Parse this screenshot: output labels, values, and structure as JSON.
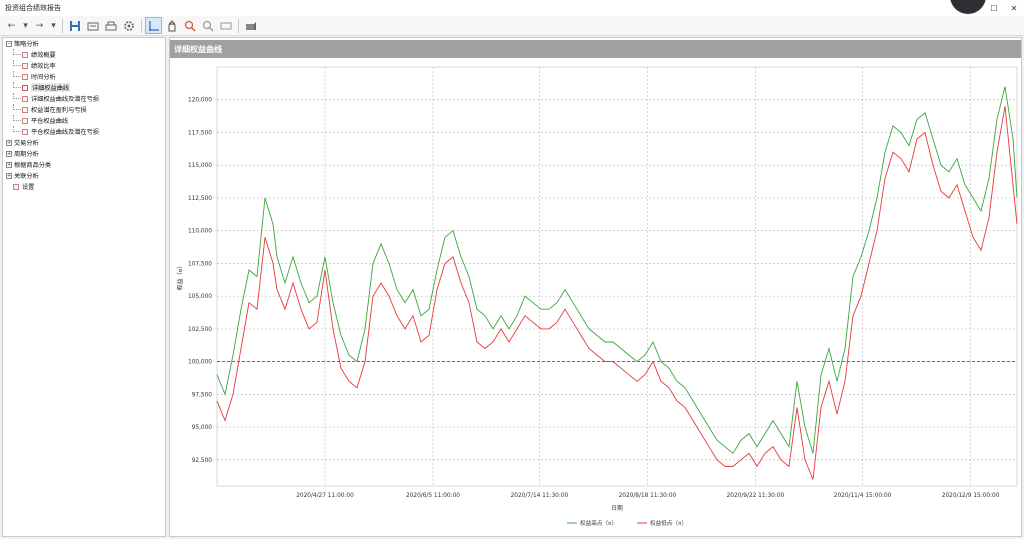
{
  "app": {
    "title": "投资组合绩效报告"
  },
  "window_controls": {
    "minimize": "—",
    "maximize": "☐",
    "close": "✕"
  },
  "toolbar": {
    "back": "←",
    "back_menu": "▾",
    "forward": "→",
    "forward_menu": "▾",
    "icons": [
      "save-icon",
      "open-icon",
      "print-icon",
      "gear-icon",
      "crosshair-icon",
      "hand-icon",
      "zoom-in-icon",
      "zoom-out-icon",
      "zoom-fit-icon",
      "export-icon"
    ]
  },
  "tree": {
    "groups": [
      {
        "label": "策略分析",
        "toggle": "−",
        "items": [
          {
            "label": "绩效概要"
          },
          {
            "label": "绩效比率"
          },
          {
            "label": "时间分析"
          },
          {
            "label": "详细权益曲线",
            "selected": true
          },
          {
            "label": "详细权益曲线及潜在亏损"
          },
          {
            "label": "权益潜在盈利与亏损"
          },
          {
            "label": "平仓权益曲线"
          },
          {
            "label": "平仓权益曲线及潜在亏损"
          }
        ]
      },
      {
        "label": "交易分析",
        "toggle": "+",
        "items": []
      },
      {
        "label": "周期分析",
        "toggle": "+",
        "items": []
      },
      {
        "label": "根据商品分类",
        "toggle": "+",
        "items": []
      },
      {
        "label": "关联分析",
        "toggle": "+",
        "items": []
      }
    ],
    "settings": {
      "label": "设置"
    }
  },
  "panel": {
    "title": "详细权益曲线"
  },
  "chart_data": {
    "type": "line",
    "xlabel": "日期",
    "ylabel": "权益（¤）",
    "ylim": [
      90500,
      122500
    ],
    "y_ticks": [
      "92,500",
      "95,000",
      "97,500",
      "100,000",
      "102,500",
      "105,000",
      "107,500",
      "110,000",
      "112,500",
      "115,000",
      "117,500",
      "120,000"
    ],
    "y_tick_values": [
      92500,
      95000,
      97500,
      100000,
      102500,
      105000,
      107500,
      110000,
      112500,
      115000,
      117500,
      120000
    ],
    "x_ticks": [
      "2020/4/27 11:00:00",
      "2020/6/5 11:00:00",
      "2020/7/14 11:30:00",
      "2020/8/18 11:30:00",
      "2020/9/22 11:30:00",
      "2020/11/4 15:00:00",
      "2020/12/9 15:00:00"
    ],
    "x_tick_positions": [
      0.135,
      0.27,
      0.403,
      0.538,
      0.673,
      0.807,
      0.942
    ],
    "baseline": 100000,
    "colors": {
      "high": "#3aa63a",
      "low": "#e8373a"
    },
    "series": [
      {
        "name": "权益高点（¤）",
        "color": "#3aa63a",
        "x": [
          0.0,
          0.01,
          0.02,
          0.03,
          0.04,
          0.05,
          0.06,
          0.07,
          0.075,
          0.085,
          0.095,
          0.105,
          0.115,
          0.125,
          0.135,
          0.145,
          0.155,
          0.165,
          0.175,
          0.185,
          0.195,
          0.205,
          0.215,
          0.225,
          0.235,
          0.245,
          0.255,
          0.265,
          0.275,
          0.285,
          0.295,
          0.305,
          0.315,
          0.325,
          0.335,
          0.345,
          0.355,
          0.365,
          0.375,
          0.385,
          0.395,
          0.405,
          0.415,
          0.425,
          0.435,
          0.445,
          0.455,
          0.465,
          0.475,
          0.485,
          0.495,
          0.505,
          0.515,
          0.525,
          0.535,
          0.545,
          0.555,
          0.565,
          0.575,
          0.585,
          0.595,
          0.605,
          0.615,
          0.625,
          0.635,
          0.645,
          0.655,
          0.665,
          0.675,
          0.685,
          0.695,
          0.705,
          0.715,
          0.725,
          0.735,
          0.745,
          0.755,
          0.765,
          0.775,
          0.785,
          0.795,
          0.805,
          0.815,
          0.825,
          0.835,
          0.845,
          0.855,
          0.865,
          0.875,
          0.885,
          0.895,
          0.905,
          0.915,
          0.925,
          0.935,
          0.945,
          0.955,
          0.965,
          0.975,
          0.985,
          0.995,
          1.0
        ],
        "values": [
          99000,
          97500,
          100500,
          104000,
          107000,
          106500,
          112500,
          110500,
          108000,
          106000,
          108000,
          106000,
          104500,
          105000,
          108000,
          104500,
          102000,
          100500,
          100000,
          102500,
          107500,
          109000,
          107500,
          105500,
          104500,
          105500,
          103500,
          104000,
          107000,
          109500,
          110000,
          108000,
          106500,
          104000,
          103500,
          102500,
          103500,
          102500,
          103500,
          105000,
          104500,
          104000,
          104000,
          104500,
          105500,
          104500,
          103500,
          102500,
          102000,
          101500,
          101500,
          101000,
          100500,
          100000,
          100500,
          101500,
          100000,
          99500,
          98500,
          98000,
          97000,
          96000,
          95000,
          94000,
          93500,
          93000,
          94000,
          94500,
          93500,
          94500,
          95500,
          94500,
          93500,
          98500,
          95000,
          93000,
          99000,
          101000,
          98500,
          101000,
          106500,
          108000,
          110000,
          112500,
          116000,
          118000,
          117500,
          116500,
          118500,
          119000,
          117000,
          115000,
          114500,
          115500,
          113500,
          112500,
          111500,
          114000,
          118500,
          121000,
          117000,
          112500
        ]
      },
      {
        "name": "权益低点（¤）",
        "color": "#e8373a",
        "x": [
          0.0,
          0.01,
          0.02,
          0.03,
          0.04,
          0.05,
          0.06,
          0.07,
          0.075,
          0.085,
          0.095,
          0.105,
          0.115,
          0.125,
          0.135,
          0.145,
          0.155,
          0.165,
          0.175,
          0.185,
          0.195,
          0.205,
          0.215,
          0.225,
          0.235,
          0.245,
          0.255,
          0.265,
          0.275,
          0.285,
          0.295,
          0.305,
          0.315,
          0.325,
          0.335,
          0.345,
          0.355,
          0.365,
          0.375,
          0.385,
          0.395,
          0.405,
          0.415,
          0.425,
          0.435,
          0.445,
          0.455,
          0.465,
          0.475,
          0.485,
          0.495,
          0.505,
          0.515,
          0.525,
          0.535,
          0.545,
          0.555,
          0.565,
          0.575,
          0.585,
          0.595,
          0.605,
          0.615,
          0.625,
          0.635,
          0.645,
          0.655,
          0.665,
          0.675,
          0.685,
          0.695,
          0.705,
          0.715,
          0.725,
          0.735,
          0.745,
          0.755,
          0.765,
          0.775,
          0.785,
          0.795,
          0.805,
          0.815,
          0.825,
          0.835,
          0.845,
          0.855,
          0.865,
          0.875,
          0.885,
          0.895,
          0.905,
          0.915,
          0.925,
          0.935,
          0.945,
          0.955,
          0.965,
          0.975,
          0.985,
          0.995,
          1.0
        ],
        "values": [
          97000,
          95500,
          97500,
          101000,
          104500,
          104000,
          109500,
          107500,
          105500,
          104000,
          106000,
          104000,
          102500,
          103000,
          107000,
          102500,
          99500,
          98500,
          98000,
          100000,
          105000,
          106000,
          105000,
          103500,
          102500,
          103500,
          101500,
          102000,
          105500,
          107500,
          108000,
          106000,
          104500,
          101500,
          101000,
          101500,
          102500,
          101500,
          102500,
          103500,
          103000,
          102500,
          102500,
          103000,
          104000,
          103000,
          102000,
          101000,
          100500,
          100000,
          100000,
          99500,
          99000,
          98500,
          99000,
          100000,
          98500,
          98000,
          97000,
          96500,
          95500,
          94500,
          93500,
          92500,
          92000,
          92000,
          92500,
          93000,
          92000,
          93000,
          93500,
          92500,
          92000,
          96500,
          92500,
          91000,
          96500,
          98500,
          96000,
          98500,
          103500,
          105000,
          107500,
          110000,
          114000,
          116000,
          115500,
          114500,
          117000,
          117500,
          115000,
          113000,
          112500,
          113500,
          111500,
          109500,
          108500,
          111000,
          116000,
          119500,
          113500,
          110500
        ]
      }
    ],
    "legend": {
      "position": "bottom-center"
    },
    "grid": true
  }
}
